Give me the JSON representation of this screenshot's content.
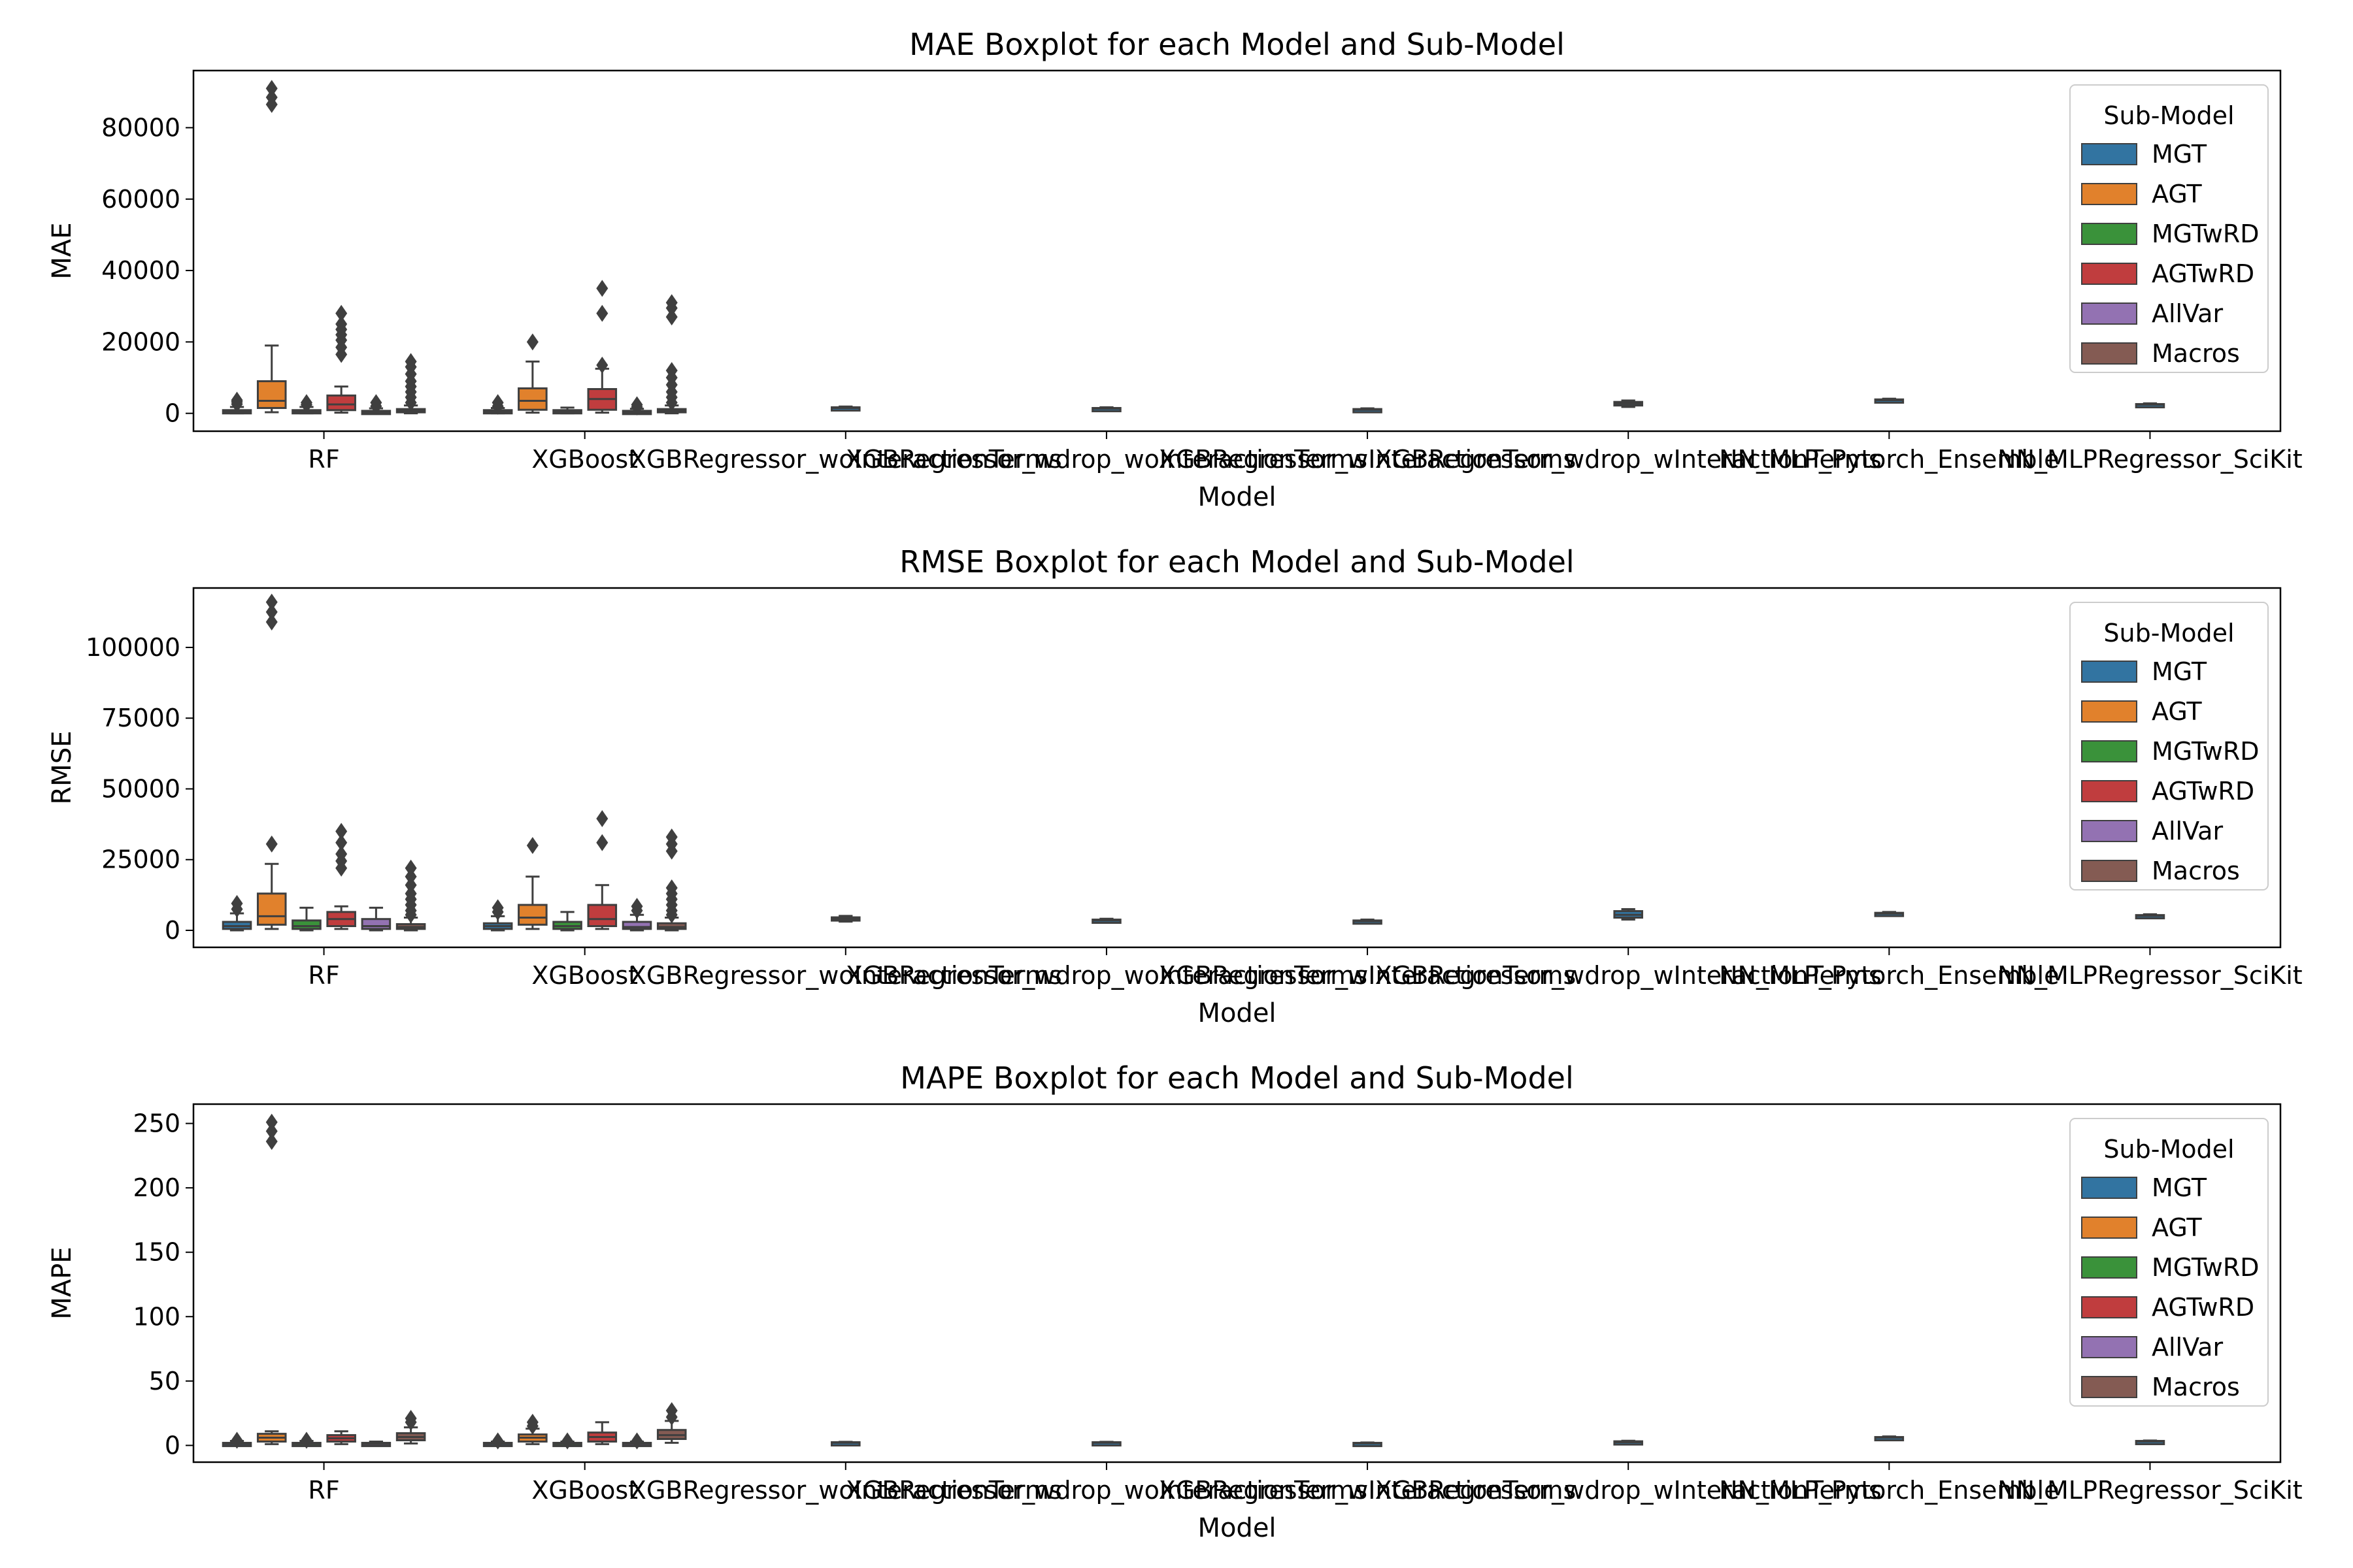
{
  "chart_data": [
    {
      "type": "box",
      "title": "MAE Boxplot for each Model and Sub-Model",
      "xlabel": "Model",
      "ylabel": "MAE",
      "ylim": [
        -5000,
        96000
      ],
      "yticks": [
        0,
        20000,
        40000,
        60000,
        80000
      ],
      "yticklabels": [
        "0",
        "20000",
        "40000",
        "60000",
        "80000"
      ],
      "legend": {
        "title": "Sub-Model",
        "position": "top-right"
      },
      "boxes": [
        {
          "model": 0,
          "sub": "MGT",
          "q1": 200,
          "med": 500,
          "q3": 900,
          "wlo": 0,
          "whi": 1800,
          "fliers": [
            2600,
            3200,
            3700
          ]
        },
        {
          "model": 0,
          "sub": "AGT",
          "q1": 1500,
          "med": 3500,
          "q3": 9000,
          "wlo": 300,
          "whi": 19000,
          "fliers": [
            86500,
            88500,
            91000
          ]
        },
        {
          "model": 0,
          "sub": "MGTwRD",
          "q1": 200,
          "med": 500,
          "q3": 900,
          "wlo": 0,
          "whi": 1800,
          "fliers": [
            2400,
            3000
          ]
        },
        {
          "model": 0,
          "sub": "AGTwRD",
          "q1": 900,
          "med": 2500,
          "q3": 5000,
          "wlo": 200,
          "whi": 7500,
          "fliers": [
            16500,
            18500,
            20500,
            22000,
            23500,
            25000,
            28000
          ]
        },
        {
          "model": 0,
          "sub": "AllVar",
          "q1": 100,
          "med": 300,
          "q3": 700,
          "wlo": 0,
          "whi": 1400,
          "fliers": [
            2000,
            3000
          ]
        },
        {
          "model": 0,
          "sub": "Macros",
          "q1": 300,
          "med": 700,
          "q3": 1200,
          "wlo": 0,
          "whi": 2200,
          "fliers": [
            3000,
            4500,
            6000,
            7500,
            9000,
            11000,
            13000,
            14500
          ]
        },
        {
          "model": 1,
          "sub": "MGT",
          "q1": 200,
          "med": 400,
          "q3": 900,
          "wlo": 0,
          "whi": 1500,
          "fliers": [
            2000,
            3000
          ]
        },
        {
          "model": 1,
          "sub": "AGT",
          "q1": 1000,
          "med": 3500,
          "q3": 7000,
          "wlo": 200,
          "whi": 14500,
          "fliers": [
            20000
          ]
        },
        {
          "model": 1,
          "sub": "MGTwRD",
          "q1": 200,
          "med": 500,
          "q3": 900,
          "wlo": 0,
          "whi": 1600,
          "fliers": []
        },
        {
          "model": 1,
          "sub": "AGTwRD",
          "q1": 1000,
          "med": 4000,
          "q3": 6800,
          "wlo": 200,
          "whi": 12500,
          "fliers": [
            13500,
            28000,
            35000
          ]
        },
        {
          "model": 1,
          "sub": "AllVar",
          "q1": 100,
          "med": 300,
          "q3": 700,
          "wlo": 0,
          "whi": 1300,
          "fliers": [
            1800,
            2400
          ]
        },
        {
          "model": 1,
          "sub": "Macros",
          "q1": 300,
          "med": 700,
          "q3": 1200,
          "wlo": 0,
          "whi": 2200,
          "fliers": [
            3000,
            4500,
            6000,
            8000,
            10000,
            12000,
            27000,
            29500,
            31000
          ]
        },
        {
          "model": 2,
          "sub": "MGT",
          "q1": 1300,
          "med": 1500,
          "q3": 1700,
          "wlo": 1100,
          "whi": 1900,
          "fliers": []
        },
        {
          "model": 3,
          "sub": "MGT",
          "q1": 1100,
          "med": 1300,
          "q3": 1500,
          "wlo": 900,
          "whi": 1700,
          "fliers": []
        },
        {
          "model": 4,
          "sub": "MGT",
          "q1": 800,
          "med": 1000,
          "q3": 1200,
          "wlo": 600,
          "whi": 1400,
          "fliers": []
        },
        {
          "model": 5,
          "sub": "MGT",
          "q1": 2200,
          "med": 2700,
          "q3": 3200,
          "wlo": 1800,
          "whi": 3600,
          "fliers": []
        },
        {
          "model": 6,
          "sub": "MGT",
          "q1": 3500,
          "med": 3700,
          "q3": 3900,
          "wlo": 3300,
          "whi": 4100,
          "fliers": []
        },
        {
          "model": 7,
          "sub": "MGT",
          "q1": 2200,
          "med": 2400,
          "q3": 2600,
          "wlo": 2000,
          "whi": 2800,
          "fliers": []
        }
      ]
    },
    {
      "type": "box",
      "title": "RMSE Boxplot for each Model and Sub-Model",
      "xlabel": "Model",
      "ylabel": "RMSE",
      "ylim": [
        -6000,
        121000
      ],
      "yticks": [
        0,
        25000,
        50000,
        75000,
        100000
      ],
      "yticklabels": [
        "0",
        "25000",
        "50000",
        "75000",
        "100000"
      ],
      "legend": {
        "title": "Sub-Model",
        "position": "top-right"
      },
      "boxes": [
        {
          "model": 0,
          "sub": "MGT",
          "q1": 500,
          "med": 1500,
          "q3": 3000,
          "wlo": 0,
          "whi": 6000,
          "fliers": [
            7500,
            9500
          ]
        },
        {
          "model": 0,
          "sub": "AGT",
          "q1": 2000,
          "med": 5000,
          "q3": 13000,
          "wlo": 500,
          "whi": 23500,
          "fliers": [
            30500,
            109000,
            112500,
            116000
          ]
        },
        {
          "model": 0,
          "sub": "MGTwRD",
          "q1": 500,
          "med": 1500,
          "q3": 3500,
          "wlo": 0,
          "whi": 8000,
          "fliers": []
        },
        {
          "model": 0,
          "sub": "AGTwRD",
          "q1": 1500,
          "med": 4000,
          "q3": 6500,
          "wlo": 500,
          "whi": 8500,
          "fliers": [
            22000,
            24500,
            27000,
            31000,
            35000
          ]
        },
        {
          "model": 0,
          "sub": "AllVar",
          "q1": 500,
          "med": 1500,
          "q3": 4000,
          "wlo": 0,
          "whi": 8000,
          "fliers": []
        },
        {
          "model": 0,
          "sub": "Macros",
          "q1": 500,
          "med": 1200,
          "q3": 2200,
          "wlo": 0,
          "whi": 4500,
          "fliers": [
            5500,
            7000,
            9000,
            11000,
            13000,
            16000,
            19000,
            22000
          ]
        },
        {
          "model": 1,
          "sub": "MGT",
          "q1": 500,
          "med": 1500,
          "q3": 2500,
          "wlo": 0,
          "whi": 5000,
          "fliers": [
            6500,
            8000
          ]
        },
        {
          "model": 1,
          "sub": "AGT",
          "q1": 2000,
          "med": 4500,
          "q3": 9000,
          "wlo": 500,
          "whi": 19000,
          "fliers": [
            30000
          ]
        },
        {
          "model": 1,
          "sub": "MGTwRD",
          "q1": 500,
          "med": 1500,
          "q3": 3000,
          "wlo": 0,
          "whi": 6500,
          "fliers": []
        },
        {
          "model": 1,
          "sub": "AGTwRD",
          "q1": 1500,
          "med": 4000,
          "q3": 9000,
          "wlo": 500,
          "whi": 16000,
          "fliers": [
            31000,
            39500
          ]
        },
        {
          "model": 1,
          "sub": "AllVar",
          "q1": 500,
          "med": 1200,
          "q3": 3000,
          "wlo": 0,
          "whi": 5500,
          "fliers": [
            7000,
            8500
          ]
        },
        {
          "model": 1,
          "sub": "Macros",
          "q1": 500,
          "med": 1200,
          "q3": 2500,
          "wlo": 0,
          "whi": 4500,
          "fliers": [
            5500,
            7000,
            9000,
            11000,
            13000,
            15000,
            28000,
            30500,
            33000
          ]
        },
        {
          "model": 2,
          "sub": "MGT",
          "q1": 3600,
          "med": 4000,
          "q3": 4600,
          "wlo": 3100,
          "whi": 5100,
          "fliers": []
        },
        {
          "model": 3,
          "sub": "MGT",
          "q1": 3200,
          "med": 3500,
          "q3": 3800,
          "wlo": 2900,
          "whi": 4100,
          "fliers": []
        },
        {
          "model": 4,
          "sub": "MGT",
          "q1": 2900,
          "med": 3200,
          "q3": 3500,
          "wlo": 2600,
          "whi": 3800,
          "fliers": []
        },
        {
          "model": 5,
          "sub": "MGT",
          "q1": 4500,
          "med": 5500,
          "q3": 6800,
          "wlo": 3800,
          "whi": 7500,
          "fliers": []
        },
        {
          "model": 6,
          "sub": "MGT",
          "q1": 5600,
          "med": 5900,
          "q3": 6200,
          "wlo": 5300,
          "whi": 6500,
          "fliers": []
        },
        {
          "model": 7,
          "sub": "MGT",
          "q1": 4800,
          "med": 5100,
          "q3": 5400,
          "wlo": 4500,
          "whi": 5700,
          "fliers": []
        }
      ]
    },
    {
      "type": "box",
      "title": "MAPE Boxplot for each Model and Sub-Model",
      "xlabel": "Model",
      "ylabel": "MAPE",
      "ylim": [
        -13,
        265
      ],
      "yticks": [
        0,
        50,
        100,
        150,
        200,
        250
      ],
      "yticklabels": [
        "0",
        "50",
        "100",
        "150",
        "200",
        "250"
      ],
      "legend": {
        "title": "Sub-Model",
        "position": "top-right"
      },
      "boxes": [
        {
          "model": 0,
          "sub": "MGT",
          "q1": 0.5,
          "med": 1.0,
          "q3": 2.0,
          "wlo": 0,
          "whi": 3.5,
          "fliers": [
            4.0
          ]
        },
        {
          "model": 0,
          "sub": "AGT",
          "q1": 3.0,
          "med": 6.0,
          "q3": 9.0,
          "wlo": 1.0,
          "whi": 11.0,
          "fliers": [
            236,
            244,
            251
          ]
        },
        {
          "model": 0,
          "sub": "MGTwRD",
          "q1": 0.5,
          "med": 1.0,
          "q3": 2.0,
          "wlo": 0,
          "whi": 3.5,
          "fliers": [
            4.0
          ]
        },
        {
          "model": 0,
          "sub": "AGTwRD",
          "q1": 3.0,
          "med": 5.5,
          "q3": 8.0,
          "wlo": 1.0,
          "whi": 11.0,
          "fliers": []
        },
        {
          "model": 0,
          "sub": "AllVar",
          "q1": 0.5,
          "med": 1.0,
          "q3": 2.0,
          "wlo": 0,
          "whi": 3.0,
          "fliers": []
        },
        {
          "model": 0,
          "sub": "Macros",
          "q1": 4.0,
          "med": 6.5,
          "q3": 9.5,
          "wlo": 1.5,
          "whi": 14.0,
          "fliers": [
            18.0,
            21.0
          ]
        },
        {
          "model": 1,
          "sub": "MGT",
          "q1": 0.5,
          "med": 1.0,
          "q3": 2.0,
          "wlo": 0,
          "whi": 3.0,
          "fliers": [
            3.5
          ]
        },
        {
          "model": 1,
          "sub": "AGT",
          "q1": 3.0,
          "med": 6.0,
          "q3": 8.5,
          "wlo": 1.0,
          "whi": 13.0,
          "fliers": [
            15.0,
            18.0
          ]
        },
        {
          "model": 1,
          "sub": "MGTwRD",
          "q1": 0.5,
          "med": 1.0,
          "q3": 2.0,
          "wlo": 0,
          "whi": 3.0,
          "fliers": [
            3.5
          ]
        },
        {
          "model": 1,
          "sub": "AGTwRD",
          "q1": 3.0,
          "med": 6.5,
          "q3": 10.0,
          "wlo": 1.0,
          "whi": 18.0,
          "fliers": []
        },
        {
          "model": 1,
          "sub": "AllVar",
          "q1": 0.5,
          "med": 1.0,
          "q3": 2.0,
          "wlo": 0,
          "whi": 3.0,
          "fliers": [
            3.5
          ]
        },
        {
          "model": 1,
          "sub": "Macros",
          "q1": 5.0,
          "med": 8.0,
          "q3": 12.0,
          "wlo": 2.0,
          "whi": 19.0,
          "fliers": [
            22.0,
            27.0
          ]
        },
        {
          "model": 2,
          "sub": "MGT",
          "q1": 1.5,
          "med": 2.0,
          "q3": 2.5,
          "wlo": 1.2,
          "whi": 2.8,
          "fliers": []
        },
        {
          "model": 3,
          "sub": "MGT",
          "q1": 1.5,
          "med": 2.0,
          "q3": 2.5,
          "wlo": 1.2,
          "whi": 2.8,
          "fliers": []
        },
        {
          "model": 4,
          "sub": "MGT",
          "q1": 1.0,
          "med": 1.5,
          "q3": 2.0,
          "wlo": 0.8,
          "whi": 2.3,
          "fliers": []
        },
        {
          "model": 5,
          "sub": "MGT",
          "q1": 2.0,
          "med": 2.5,
          "q3": 3.2,
          "wlo": 1.5,
          "whi": 3.6,
          "fliers": []
        },
        {
          "model": 6,
          "sub": "MGT",
          "q1": 5.5,
          "med": 6.0,
          "q3": 6.5,
          "wlo": 5.0,
          "whi": 7.0,
          "fliers": []
        },
        {
          "model": 7,
          "sub": "MGT",
          "q1": 2.5,
          "med": 3.0,
          "q3": 3.5,
          "wlo": 2.2,
          "whi": 3.8,
          "fliers": []
        }
      ]
    }
  ],
  "categories": [
    "RF",
    "XGBoost",
    "XGBRegressor_woInteractionTerms",
    "XGBRegressor_wdrop_woInteractionTerms",
    "XGBRegressor_wInteractionTerms",
    "XGBRegressor_wdrop_wInteractionTerms",
    "NN_MLP_Pytorch_Ensemble",
    "NN_MLPRegressor_SciKit"
  ],
  "sub_models": [
    "MGT",
    "AGT",
    "MGTwRD",
    "AGTwRD",
    "AllVar",
    "Macros"
  ],
  "colors": {
    "MGT": "#3274a1",
    "AGT": "#e1812c",
    "MGTwRD": "#3a923a",
    "AGTwRD": "#c03d3e",
    "AllVar": "#9372b2",
    "Macros": "#845b53",
    "box_line": "#3f3f3f"
  }
}
